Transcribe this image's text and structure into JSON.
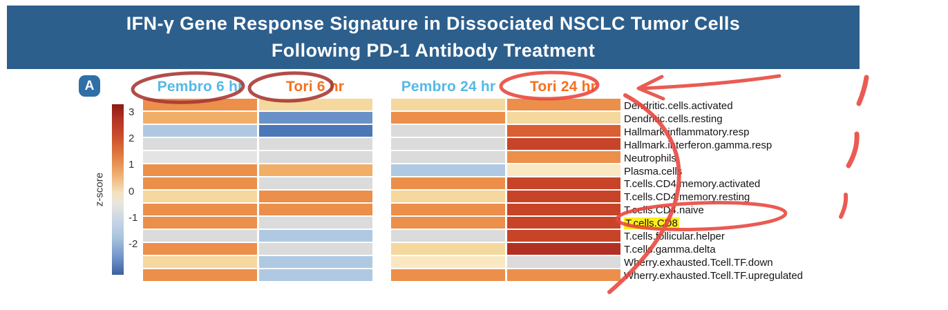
{
  "header": {
    "title_line1": "IFN-γ Gene Response Signature in Dissociated NSCLC Tumor Cells",
    "title_line2": "Following PD-1 Antibody Treatment",
    "background": "#2D5F8D"
  },
  "panel": {
    "label": "A"
  },
  "colorbar": {
    "label": "z-score",
    "ticks": [
      "3",
      "2",
      "1",
      "0",
      "-1",
      "-2"
    ]
  },
  "columns": [
    {
      "label": "Pembro 6 hr",
      "color": "#55B9E5"
    },
    {
      "label": "Tori 6 hr",
      "color": "#F4701F"
    },
    {
      "label": "Pembro 24 hr",
      "color": "#55B9E5"
    },
    {
      "label": "Tori 24 hr",
      "color": "#F4701F"
    }
  ],
  "rows": [
    "Dendritic.cells.activated",
    "Dendritic.cells.resting",
    "Hallmark.inflammatory.resp",
    "Hallmark.interferon.gamma.resp",
    "Neutrophils",
    "Plasma.cells",
    "T.cells.CD4.memory.activated",
    "T.cells.CD4.memory.resting",
    "T.cells.CD4.naive",
    "T.cells.CD8",
    "T.cells.follicular.helper",
    "T.cells.gamma.delta",
    "Wherry.exhausted.Tcell.TF.down",
    "Wherry.exhausted.Tcell.TF.upregulated"
  ],
  "highlight": {
    "row": "T.cells.CD8",
    "color": "#FFEC20"
  },
  "cell_colors": [
    [
      "#EC8F4B",
      "#F5D89E",
      "#F5D89E",
      "#EC8F4B"
    ],
    [
      "#F1AE66",
      "#6A92C8",
      "#EC8F4B",
      "#F5D89E"
    ],
    [
      "#AFC9E2",
      "#4B77B7",
      "#DBDBDB",
      "#DA5F33"
    ],
    [
      "#DBDBDB",
      "#DBDBDB",
      "#DBDBDB",
      "#C74428"
    ],
    [
      "#E4E4E4",
      "#DBDBDB",
      "#DBDBDB",
      "#EC8F4B"
    ],
    [
      "#EC8F4B",
      "#F1AE66",
      "#AFC9E2",
      "#F9E8C2"
    ],
    [
      "#EC8F4B",
      "#DBDBDB",
      "#EC8F4B",
      "#C74428"
    ],
    [
      "#F5D89E",
      "#EC8F4B",
      "#F5D89E",
      "#C74428"
    ],
    [
      "#EC8F4B",
      "#EC8F4B",
      "#EC8F4B",
      "#C74428"
    ],
    [
      "#EC8F4B",
      "#DBDBDB",
      "#EC8F4B",
      "#C74428"
    ],
    [
      "#DBDBDB",
      "#AFC9E2",
      "#DBDBDB",
      "#C74428"
    ],
    [
      "#EC8F4B",
      "#DBDBDB",
      "#F5D89E",
      "#B23023"
    ],
    [
      "#F5D89E",
      "#AFC9E2",
      "#F9E8C2",
      "#DBDBDB"
    ],
    [
      "#EC8F4B",
      "#AFC9E2",
      "#EC8F4B",
      "#EC8F4B"
    ]
  ],
  "annotations": {
    "marker_dark": "#A83530",
    "marker_bright": "#E8453C",
    "items": [
      "ellipse-around-pembro-6hr",
      "ellipse-around-tori-6hr",
      "ellipse-around-tori-24hr",
      "hand-drawn-arrow-pointing-to-tori-24hr",
      "large-curved-swoosh-right-side",
      "ellipse-around-tcells-cd8",
      "red-tick-mark-1",
      "red-tick-mark-2",
      "red-tick-mark-3"
    ]
  },
  "chart_data": {
    "type": "heatmap",
    "title": "IFN-γ Gene Response Signature in Dissociated NSCLC Tumor Cells Following PD-1 Antibody Treatment",
    "value_label": "z-score",
    "zlim": [
      -2.5,
      3.5
    ],
    "colormap": "red (high) → cream (0) → blue (low); gray cells = no value / not significant",
    "columns": [
      "Pembro 6 hr",
      "Tori 6 hr",
      "Pembro 24 hr",
      "Tori 24 hr"
    ],
    "rows": [
      "Dendritic.cells.activated",
      "Dendritic.cells.resting",
      "Hallmark.inflammatory.resp",
      "Hallmark.interferon.gamma.resp",
      "Neutrophils",
      "Plasma.cells",
      "T.cells.CD4.memory.activated",
      "T.cells.CD4.memory.resting",
      "T.cells.CD4.naive",
      "T.cells.CD8",
      "T.cells.follicular.helper",
      "T.cells.gamma.delta",
      "Wherry.exhausted.Tcell.TF.down",
      "Wherry.exhausted.Tcell.TF.upregulated"
    ],
    "values": [
      [
        1.2,
        0.5,
        0.5,
        1.2
      ],
      [
        0.8,
        -1.5,
        1.2,
        0.5
      ],
      [
        -0.8,
        -2.0,
        null,
        2.0
      ],
      [
        null,
        null,
        null,
        2.5
      ],
      [
        null,
        null,
        null,
        1.2
      ],
      [
        1.2,
        0.8,
        -0.8,
        0.3
      ],
      [
        1.2,
        null,
        1.2,
        2.5
      ],
      [
        0.5,
        1.2,
        0.5,
        2.5
      ],
      [
        1.2,
        1.2,
        1.2,
        2.5
      ],
      [
        1.2,
        null,
        1.2,
        2.5
      ],
      [
        null,
        -0.8,
        null,
        2.5
      ],
      [
        1.2,
        null,
        0.5,
        3.0
      ],
      [
        0.5,
        -0.8,
        0.3,
        null
      ],
      [
        1.2,
        -0.8,
        1.2,
        1.2
      ]
    ],
    "highlighted_row": "T.cells.CD8"
  }
}
